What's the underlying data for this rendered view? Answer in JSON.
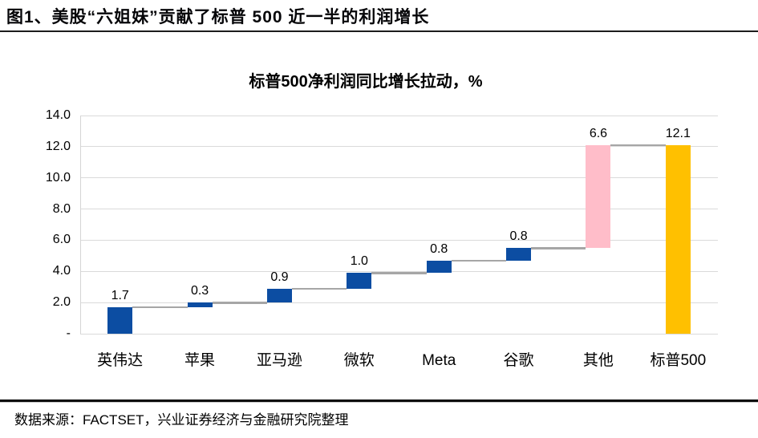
{
  "page": {
    "title": "图1、美股“六姐妹”贡献了标普 500 近一半的利润增长",
    "source": "数据来源：FACTSET，兴业证券经济与金融研究院整理"
  },
  "chart_data": {
    "type": "bar",
    "subtype": "waterfall",
    "title": "标普500净利润同比增长拉动，%",
    "categories": [
      "英伟达",
      "苹果",
      "亚马逊",
      "微软",
      "Meta",
      "谷歌",
      "其他",
      "标普500"
    ],
    "values": [
      1.7,
      0.3,
      0.9,
      1.0,
      0.8,
      0.8,
      6.6,
      12.1
    ],
    "bars": [
      {
        "category": "英伟达",
        "value": 1.7,
        "start": 0,
        "end": 1.7,
        "label": "1.7",
        "role": "company"
      },
      {
        "category": "苹果",
        "value": 0.3,
        "start": 1.7,
        "end": 2.0,
        "label": "0.3",
        "role": "company"
      },
      {
        "category": "亚马逊",
        "value": 0.9,
        "start": 2.0,
        "end": 2.9,
        "label": "0.9",
        "role": "company"
      },
      {
        "category": "微软",
        "value": 1.0,
        "start": 2.9,
        "end": 3.9,
        "label": "1.0",
        "role": "company"
      },
      {
        "category": "Meta",
        "value": 0.8,
        "start": 3.9,
        "end": 4.7,
        "label": "0.8",
        "role": "company"
      },
      {
        "category": "谷歌",
        "value": 0.8,
        "start": 4.7,
        "end": 5.5,
        "label": "0.8",
        "role": "company"
      },
      {
        "category": "其他",
        "value": 6.6,
        "start": 5.5,
        "end": 12.1,
        "label": "6.6",
        "role": "other"
      },
      {
        "category": "标普500",
        "value": 12.1,
        "start": 0,
        "end": 12.1,
        "label": "12.1",
        "role": "total"
      }
    ],
    "y_axis": {
      "tick_labels": [
        "14.0",
        "12.0",
        "10.0",
        "8.0",
        "6.0",
        "4.0",
        "2.0",
        "-"
      ],
      "tick_values": [
        14,
        12,
        10,
        8,
        6,
        4,
        2,
        0
      ]
    },
    "ylim": [
      0,
      14
    ],
    "grid": true,
    "legend": false,
    "colors": {
      "company": "#0C4DA2",
      "other": "#FFBDC9",
      "total": "#FFC000",
      "gridline": "#DADADA",
      "connector": "#A6A6A6",
      "axis": "#D5D5D5"
    }
  }
}
